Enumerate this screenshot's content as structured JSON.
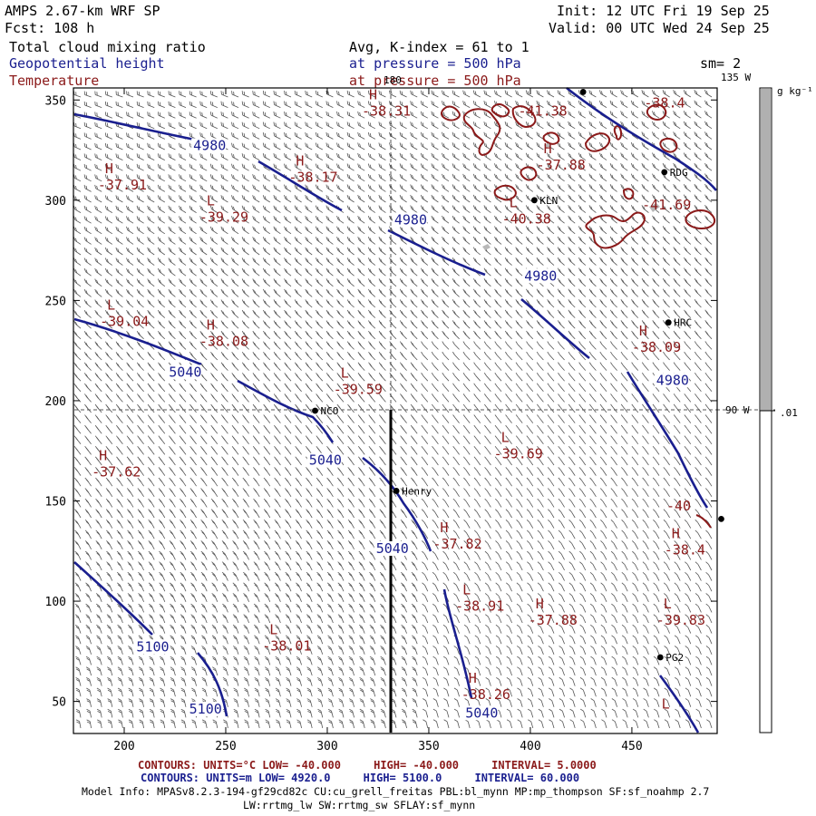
{
  "header": {
    "model": "AMPS 2.67-km WRF SP",
    "init": "Init: 12 UTC Fri 19 Sep 25",
    "fcst": "Fcst:  108 h",
    "valid": "Valid: 00 UTC Wed 24 Sep 25",
    "field1_name": "Total cloud mixing ratio",
    "field1_desc": "Avg, K-index =  61 to   1",
    "field2_name": "Geopotential height",
    "field2_desc": "at pressure =  500 hPa",
    "field3_name": "Temperature",
    "field3_desc": "at pressure =  500 hPa",
    "smoothing": "sm= 2"
  },
  "colors": {
    "height": "#1a1f8f",
    "temperature": "#8b1a1a",
    "text": "#000000",
    "gridline": "#000000",
    "barb": "#444444",
    "colorbar_fill": "#b0b0b0"
  },
  "map": {
    "x_ticks": [
      "200",
      "250",
      "300",
      "350",
      "400",
      "450"
    ],
    "y_ticks": [
      "50",
      "100",
      "150",
      "200",
      "250",
      "300",
      "350"
    ],
    "lon_labels": [
      "180",
      "135 W",
      "90 W"
    ],
    "height_labels": [
      {
        "text": "4980",
        "x": 234,
        "y": 325
      },
      {
        "text": "4980",
        "x": 333,
        "y": 288
      },
      {
        "text": "4980",
        "x": 397,
        "y": 260
      },
      {
        "text": "4980",
        "x": 462,
        "y": 208
      },
      {
        "text": "5040",
        "x": 222,
        "y": 212
      },
      {
        "text": "5040",
        "x": 291,
        "y": 168
      },
      {
        "text": "5040",
        "x": 324,
        "y": 124
      },
      {
        "text": "5040",
        "x": 368,
        "y": 42
      },
      {
        "text": "5100",
        "x": 206,
        "y": 75
      },
      {
        "text": "5100",
        "x": 232,
        "y": 44
      }
    ],
    "temp_centers": [
      {
        "type": "H",
        "value": "-38.31",
        "x": 317,
        "y": 345
      },
      {
        "type": "",
        "value": "-41.38",
        "x": 394,
        "y": 345
      },
      {
        "type": "",
        "value": "-38.4",
        "x": 456,
        "y": 349
      },
      {
        "type": "H",
        "value": "-37.88",
        "x": 403,
        "y": 318
      },
      {
        "type": "H",
        "value": "-37.91",
        "x": 187,
        "y": 308
      },
      {
        "type": "H",
        "value": "-38.17",
        "x": 281,
        "y": 312
      },
      {
        "type": "L",
        "value": "-40.38",
        "x": 386,
        "y": 291
      },
      {
        "type": "",
        "value": "-41.69",
        "x": 455,
        "y": 298
      },
      {
        "type": "L",
        "value": "-39.29",
        "x": 237,
        "y": 292
      },
      {
        "type": "L",
        "value": "-39.04",
        "x": 188,
        "y": 240
      },
      {
        "type": "H",
        "value": "-38.08",
        "x": 237,
        "y": 230
      },
      {
        "type": "H",
        "value": "-38.09",
        "x": 450,
        "y": 227
      },
      {
        "type": "L",
        "value": "-39.59",
        "x": 303,
        "y": 206
      },
      {
        "type": "H",
        "value": "-37.62",
        "x": 184,
        "y": 165
      },
      {
        "type": "L",
        "value": "-39.69",
        "x": 382,
        "y": 174
      },
      {
        "type": "",
        "value": "-40",
        "x": 467,
        "y": 148
      },
      {
        "type": "H",
        "value": "-37.82",
        "x": 352,
        "y": 129
      },
      {
        "type": "H",
        "value": "-38.4",
        "x": 466,
        "y": 126
      },
      {
        "type": "L",
        "value": "-38.91",
        "x": 363,
        "y": 98
      },
      {
        "type": "H",
        "value": "-37.88",
        "x": 399,
        "y": 91
      },
      {
        "type": "L",
        "value": "-39.83",
        "x": 462,
        "y": 91
      },
      {
        "type": "L",
        "value": "-38.01",
        "x": 268,
        "y": 78
      },
      {
        "type": "H",
        "value": "-38.26",
        "x": 366,
        "y": 54
      },
      {
        "type": "L",
        "value": "",
        "x": 461,
        "y": 41
      }
    ],
    "stations": [
      {
        "name": "NCO",
        "x": 294,
        "y": 195
      },
      {
        "name": "Henry",
        "x": 334,
        "y": 155
      },
      {
        "name": "KLN",
        "x": 402,
        "y": 300
      },
      {
        "name": "RDG",
        "x": 466,
        "y": 314
      },
      {
        "name": "HRC",
        "x": 468,
        "y": 239
      },
      {
        "name": "PG2",
        "x": 464,
        "y": 72
      },
      {
        "name": "",
        "x": 426,
        "y": 354
      },
      {
        "name": "",
        "x": 494,
        "y": 141
      }
    ],
    "cross_section_x": 334
  },
  "colorbar": {
    "unit": "g kg⁻¹",
    "tick": ".01"
  },
  "footer": {
    "line1_prefix": "CONTOURS:  UNITS=°C  LOW=  -40.000",
    "line1_high": "HIGH=  -40.000",
    "line1_interval": "INTERVAL=   5.0000",
    "line2_prefix": "CONTOURS:  UNITS=m  LOW=   4920.0",
    "line2_high": "HIGH=   5100.0",
    "line2_interval": "INTERVAL=   60.000",
    "model_info": "Model Info: MPASv8.2.3-194-gf29cd82c CU:cu_grell_freitas PBL:bl_mynn MP:mp_thompson SF:sf_noahmp 2.7",
    "model_info2": "LW:rrtmg_lw SW:rrtmg_sw SFLAY:sf_mynn"
  }
}
